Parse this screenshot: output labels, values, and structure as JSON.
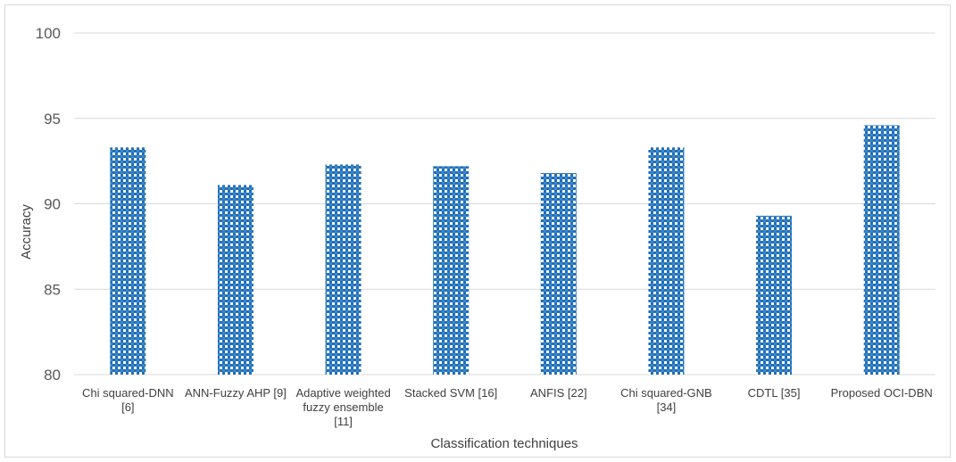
{
  "chart_data": {
    "type": "bar",
    "title": "",
    "xlabel": "Classification techniques",
    "ylabel": "Accuracy",
    "ylim": [
      80,
      100
    ],
    "yticks": [
      80,
      85,
      90,
      95,
      100
    ],
    "grid": true,
    "legend": "none",
    "bar_color": "#1f6fb8",
    "categories": [
      [
        "Chi squared-DNN",
        "[6]"
      ],
      [
        "ANN-Fuzzy AHP [9]"
      ],
      [
        "Adaptive weighted",
        "fuzzy ensemble",
        "[11]"
      ],
      [
        "Stacked SVM [16]"
      ],
      [
        "ANFIS [22]"
      ],
      [
        "Chi squared-GNB",
        "[34]"
      ],
      [
        "CDTL [35]"
      ],
      [
        "Proposed OCI-DBN"
      ]
    ],
    "values": [
      93.3,
      91.1,
      92.3,
      92.2,
      91.8,
      93.3,
      89.3,
      94.6
    ]
  }
}
